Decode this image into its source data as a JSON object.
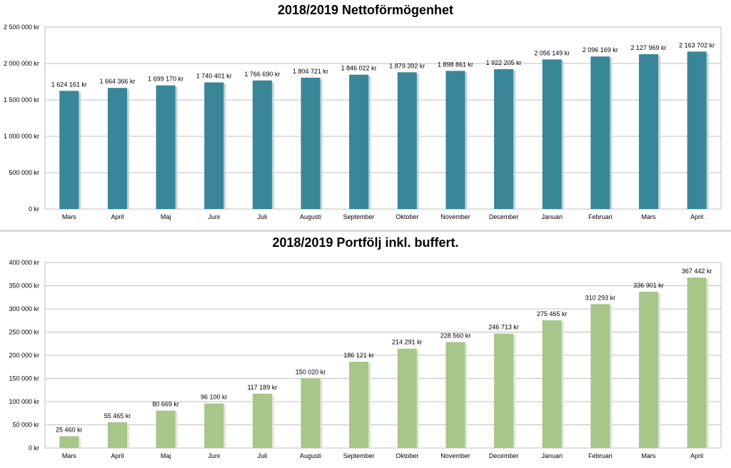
{
  "chart_data": [
    {
      "type": "bar",
      "title": "2018/2019 Nettoförmögenhet",
      "color": "#3a8699",
      "shadow": "#bcd6dd",
      "categories": [
        "Mars",
        "April",
        "Maj",
        "Juni",
        "Juli",
        "Augusti",
        "September",
        "Oktober",
        "November",
        "December",
        "Januari",
        "Februari",
        "Mars",
        "April"
      ],
      "values": [
        1624161,
        1664366,
        1699170,
        1740401,
        1766690,
        1804721,
        1846022,
        1879392,
        1898861,
        1922205,
        2056149,
        2096169,
        2127969,
        2163702
      ],
      "value_labels": [
        "1 624 161 kr",
        "1 664 366 kr",
        "1 699 170 kr",
        "1 740 401 kr",
        "1 766 690 kr",
        "1 804 721 kr",
        "1 846 022 kr",
        "1 879 392 kr",
        "1 898 861 kr",
        "1 922 205 kr",
        "2 056 149 kr",
        "2 096 169 kr",
        "2 127 969 kr",
        "2 163 702 kr"
      ],
      "yticks": [
        0,
        500000,
        1000000,
        1500000,
        2000000,
        2500000
      ],
      "ytick_labels": [
        "0 kr",
        "500 000 kr",
        "1 000 000 kr",
        "1 500 000 kr",
        "2 000 000 kr",
        "2 500 000 kr"
      ],
      "ylim": [
        0,
        2500000
      ],
      "grid": true
    },
    {
      "type": "bar",
      "title": "2018/2019 Portfölj inkl. buffert.",
      "color": "#a6c68a",
      "shadow": "#dde8d2",
      "categories": [
        "Mars",
        "April",
        "Maj",
        "Juni",
        "Juli",
        "Augusti",
        "September",
        "Oktober",
        "November",
        "December",
        "Januari",
        "Februari",
        "Mars",
        "April"
      ],
      "values": [
        25460,
        55465,
        80669,
        96100,
        117189,
        150020,
        186121,
        214291,
        228560,
        246713,
        275465,
        310293,
        336901,
        367442
      ],
      "value_labels": [
        "25 460 kr",
        "55 465 kr",
        "80 669 kr",
        "96 100 kr",
        "117 189 kr",
        "150 020 kr",
        "186 121 kr",
        "214 291 kr",
        "228 560 kr",
        "246 713 kr",
        "275 465 kr",
        "310 293 kr",
        "336 901 kr",
        "367 442 kr"
      ],
      "yticks": [
        0,
        50000,
        100000,
        150000,
        200000,
        250000,
        300000,
        350000,
        400000
      ],
      "ytick_labels": [
        "0 kr",
        "50 000 kr",
        "100 000 kr",
        "150 000 kr",
        "200 000 kr",
        "250 000 kr",
        "300 000 kr",
        "350 000 kr",
        "400 000 kr"
      ],
      "ylim": [
        0,
        400000
      ],
      "grid": true
    }
  ]
}
